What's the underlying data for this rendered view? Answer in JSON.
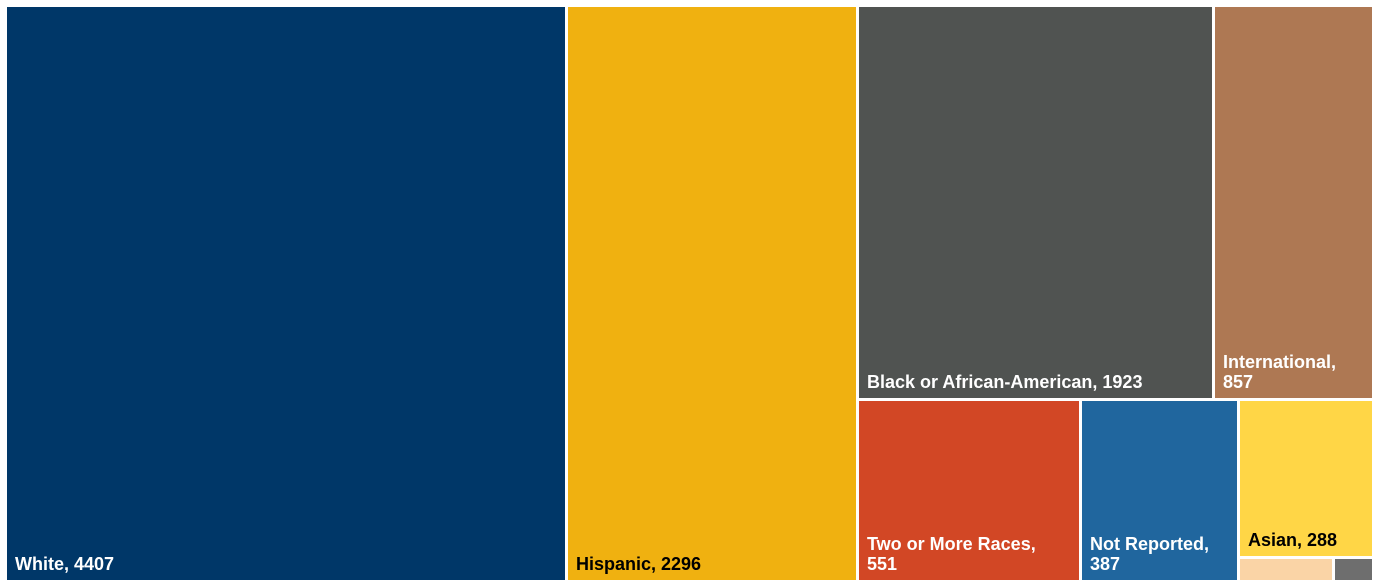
{
  "chart_data": {
    "type": "treemap",
    "series": [
      {
        "name": "White",
        "value": 4407,
        "color": "#003768",
        "label_color": "#ffffff"
      },
      {
        "name": "Hispanic",
        "value": 2296,
        "color": "#F0B110",
        "label_color": "#000000"
      },
      {
        "name": "Black or African-American",
        "value": 1923,
        "color": "#505351",
        "label_color": "#ffffff"
      },
      {
        "name": "International",
        "value": 857,
        "color": "#AE7853",
        "label_color": "#ffffff"
      },
      {
        "name": "Two or More Races",
        "value": 551,
        "color": "#D24725",
        "label_color": "#ffffff"
      },
      {
        "name": "Not Reported",
        "value": 387,
        "color": "#20669E",
        "label_color": "#ffffff"
      },
      {
        "name": "Asian",
        "value": 288,
        "color": "#FFD646",
        "label_color": "#000000"
      },
      {
        "name": "",
        "value": null,
        "color": "#FAD4A6",
        "label_color": "#000000"
      },
      {
        "name": "",
        "value": null,
        "color": "#6E6E6E",
        "label_color": "#000000"
      }
    ]
  }
}
